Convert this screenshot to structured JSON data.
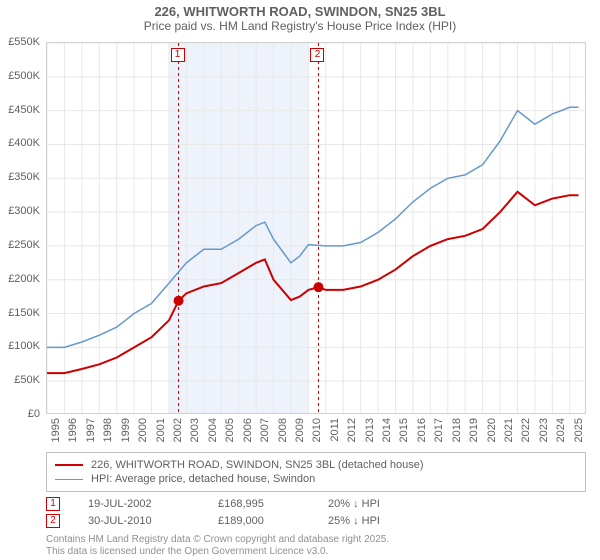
{
  "title": "226, WHITWORTH ROAD, SWINDON, SN25 3BL",
  "subtitle": "Price paid vs. HM Land Registry's House Price Index (HPI)",
  "chart": {
    "type": "line",
    "background_color": "#ffffff",
    "grid_color": "#e8e8e8",
    "border_color": "#d0d0d0",
    "shaded_band": {
      "x_start": 2002,
      "x_end": 2010,
      "fill": "#eef3fb"
    },
    "xlim": [
      1995,
      2025.99
    ],
    "ylim": [
      0,
      550000
    ],
    "xticks": [
      1995,
      1996,
      1997,
      1998,
      1999,
      2000,
      2001,
      2002,
      2003,
      2004,
      2005,
      2006,
      2007,
      2008,
      2009,
      2010,
      2011,
      2012,
      2013,
      2014,
      2015,
      2016,
      2017,
      2018,
      2019,
      2020,
      2021,
      2022,
      2023,
      2024,
      2025
    ],
    "xtick_labels": [
      "1995",
      "1996",
      "1997",
      "1998",
      "1999",
      "2000",
      "2001",
      "2002",
      "2003",
      "2004",
      "2005",
      "2006",
      "2007",
      "2008",
      "2009",
      "2010",
      "2011",
      "2012",
      "2013",
      "2014",
      "2015",
      "2016",
      "2017",
      "2018",
      "2019",
      "2020",
      "2021",
      "2022",
      "2023",
      "2024",
      "2025"
    ],
    "yticks": [
      0,
      50000,
      100000,
      150000,
      200000,
      250000,
      300000,
      350000,
      400000,
      450000,
      500000,
      550000
    ],
    "ytick_labels": [
      "£0",
      "£50K",
      "£100K",
      "£150K",
      "£200K",
      "£250K",
      "£300K",
      "£350K",
      "£400K",
      "£450K",
      "£500K",
      "£550K"
    ],
    "tick_fontsize": 11,
    "series": [
      {
        "name": "price_paid",
        "label": "226, WHITWORTH ROAD, SWINDON, SN25 3BL (detached house)",
        "color": "#cc0000",
        "line_width": 2,
        "x": [
          1995,
          1996,
          1997,
          1998,
          1999,
          2000,
          2001,
          2002,
          2002.55,
          2003,
          2004,
          2005,
          2006,
          2007,
          2007.5,
          2008,
          2009,
          2009.5,
          2010,
          2010.58,
          2011,
          2012,
          2013,
          2014,
          2015,
          2016,
          2017,
          2018,
          2019,
          2020,
          2021,
          2022,
          2023,
          2024,
          2025,
          2025.5
        ],
        "y": [
          62000,
          62000,
          68000,
          75000,
          85000,
          100000,
          115000,
          140000,
          168995,
          180000,
          190000,
          195000,
          210000,
          225000,
          230000,
          200000,
          170000,
          175000,
          185000,
          189000,
          185000,
          185000,
          190000,
          200000,
          215000,
          235000,
          250000,
          260000,
          265000,
          275000,
          300000,
          330000,
          310000,
          320000,
          325000,
          325000
        ]
      },
      {
        "name": "hpi",
        "label": "HPI: Average price, detached house, Swindon",
        "color": "#6699cc",
        "line_width": 1.5,
        "x": [
          1995,
          1996,
          1997,
          1998,
          1999,
          2000,
          2001,
          2002,
          2003,
          2004,
          2005,
          2006,
          2007,
          2007.5,
          2008,
          2009,
          2009.5,
          2010,
          2011,
          2012,
          2013,
          2014,
          2015,
          2016,
          2017,
          2018,
          2019,
          2020,
          2021,
          2022,
          2023,
          2024,
          2025,
          2025.5
        ],
        "y": [
          100000,
          100000,
          108000,
          118000,
          130000,
          150000,
          165000,
          195000,
          225000,
          245000,
          245000,
          260000,
          280000,
          285000,
          260000,
          225000,
          235000,
          252000,
          250000,
          250000,
          255000,
          270000,
          290000,
          315000,
          335000,
          350000,
          355000,
          370000,
          405000,
          450000,
          430000,
          445000,
          455000,
          455000
        ]
      }
    ],
    "sale_markers": [
      {
        "label": "1",
        "x": 2002.55,
        "y": 168995,
        "marker_color": "#cc0000",
        "marker_size": 5,
        "vline_color": "#cc0000",
        "vline_dash": "3,3"
      },
      {
        "label": "2",
        "x": 2010.58,
        "y": 189000,
        "marker_color": "#cc0000",
        "marker_size": 5,
        "vline_color": "#cc0000",
        "vline_dash": "3,3"
      }
    ]
  },
  "legend": {
    "border_color": "#c0c0c0",
    "items": [
      {
        "color": "#cc0000",
        "width": 2,
        "label": "226, WHITWORTH ROAD, SWINDON, SN25 3BL (detached house)"
      },
      {
        "color": "#6699cc",
        "width": 1.5,
        "label": "HPI: Average price, detached house, Swindon"
      }
    ]
  },
  "sales": [
    {
      "num": "1",
      "date": "19-JUL-2002",
      "price": "£168,995",
      "diff": "20% ↓ HPI"
    },
    {
      "num": "2",
      "date": "30-JUL-2010",
      "price": "£189,000",
      "diff": "25% ↓ HPI"
    }
  ],
  "footer_line1": "Contains HM Land Registry data © Crown copyright and database right 2025.",
  "footer_line2": "This data is licensed under the Open Government Licence v3.0."
}
